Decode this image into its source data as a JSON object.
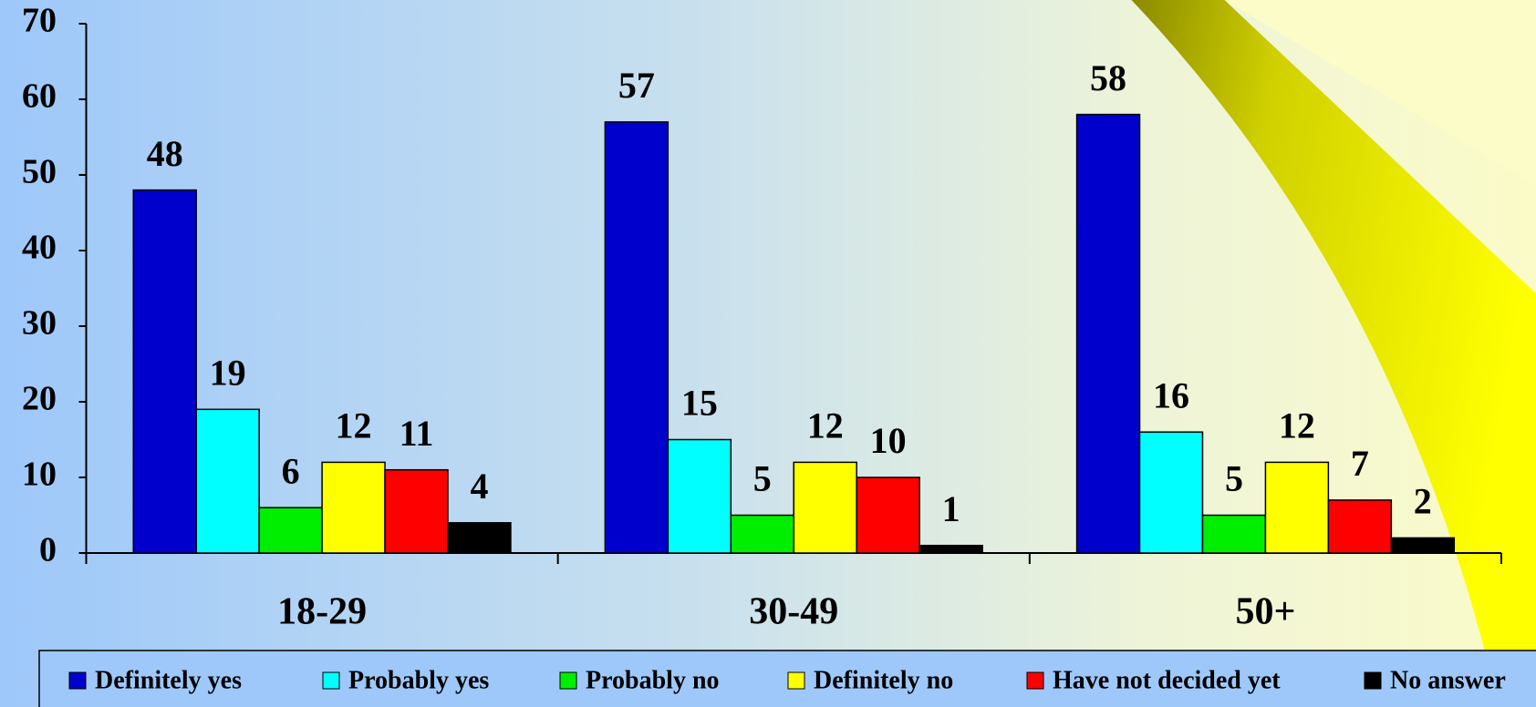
{
  "chart_data": {
    "type": "bar",
    "categories": [
      "18-29",
      "30-49",
      "50+"
    ],
    "series": [
      {
        "name": "Definitely yes",
        "color": "#0000cc",
        "values": [
          48,
          57,
          58
        ]
      },
      {
        "name": "Probably yes",
        "color": "#00ffff",
        "values": [
          19,
          15,
          16
        ]
      },
      {
        "name": "Probably no",
        "color": "#00ee00",
        "values": [
          6,
          5,
          5
        ]
      },
      {
        "name": "Definitely no",
        "color": "#ffff00",
        "values": [
          12,
          12,
          12
        ]
      },
      {
        "name": "Have not decided yet",
        "color": "#ff0000",
        "values": [
          11,
          10,
          7
        ]
      },
      {
        "name": "No answer",
        "color": "#000000",
        "values": [
          4,
          1,
          2
        ]
      }
    ],
    "ylim": [
      0,
      70
    ],
    "yticks": [
      0,
      10,
      20,
      30,
      40,
      50,
      60,
      70
    ],
    "grid": false,
    "legend": "bottom"
  }
}
